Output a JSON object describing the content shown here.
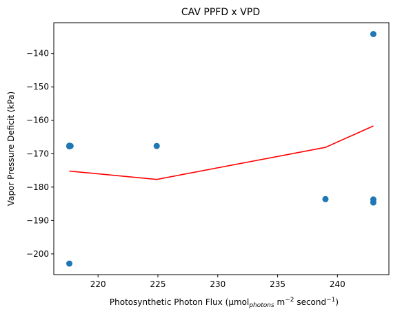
{
  "chart_data": {
    "type": "scatter",
    "title": "CAV PPFD x VPD",
    "xlabel": {
      "main": "Photosynthetic Photon Flux (µmol",
      "sub": "photons",
      "mid": " m",
      "sup1": "−2",
      "mid2": " second",
      "sup2": "−1",
      "end": ")"
    },
    "ylabel": "Vapor Pressure Deficit (kPa)",
    "xlim": [
      216.3,
      244.3
    ],
    "ylim": [
      -206.2,
      -130.8
    ],
    "xticks": [
      220,
      225,
      230,
      235,
      240
    ],
    "yticks": [
      -200,
      -190,
      -180,
      -170,
      -160,
      -150,
      -140
    ],
    "grid": false,
    "series": [
      {
        "kind": "scatter",
        "color": "#1f77b4",
        "points": [
          {
            "x": 217.6,
            "y": -167.8
          },
          {
            "x": 217.6,
            "y": -167.6
          },
          {
            "x": 217.7,
            "y": -167.7
          },
          {
            "x": 217.6,
            "y": -202.9
          },
          {
            "x": 224.9,
            "y": -167.7
          },
          {
            "x": 239.0,
            "y": -183.6
          },
          {
            "x": 243.0,
            "y": -134.2
          },
          {
            "x": 243.0,
            "y": -183.7
          },
          {
            "x": 243.0,
            "y": -184.6
          }
        ]
      },
      {
        "kind": "line",
        "color": "#ff0000",
        "points": [
          {
            "x": 217.6,
            "y": -175.2
          },
          {
            "x": 224.9,
            "y": -177.7
          },
          {
            "x": 239.0,
            "y": -168.1
          },
          {
            "x": 243.0,
            "y": -161.7
          }
        ]
      }
    ]
  }
}
